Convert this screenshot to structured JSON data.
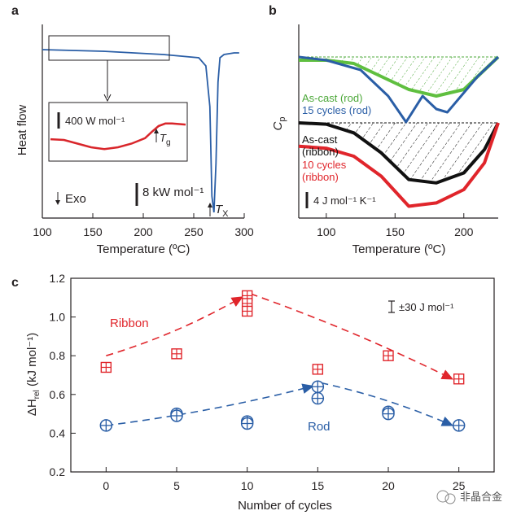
{
  "chart_data": [
    {
      "panel": "a",
      "type": "line",
      "xlabel": "Temperature (ºC)",
      "ylabel": "Heat flow",
      "xlim": [
        100,
        300
      ],
      "xticks": [
        "100",
        "150",
        "200",
        "250",
        "300"
      ],
      "annotations": {
        "exo": "Exo",
        "scale_main": "8 kW mol⁻¹",
        "scale_inset": "400 W mol⁻¹",
        "tx_sym": "T",
        "tx_sub": "X",
        "tg_sym": "T",
        "tg_sub": "g"
      },
      "series": [
        {
          "color": "#2a5ea6",
          "x": [
            100,
            160,
            220,
            255,
            262,
            266,
            268,
            270,
            272,
            274,
            276,
            280,
            290,
            295
          ],
          "y": [
            0.0,
            -0.01,
            -0.03,
            -0.05,
            -0.1,
            -0.35,
            -0.9,
            -1.0,
            -0.7,
            -0.2,
            -0.05,
            -0.03,
            -0.02,
            -0.02
          ]
        }
      ],
      "inset": {
        "color": "#d9262b",
        "x": [
          0,
          0.1,
          0.2,
          0.3,
          0.4,
          0.5,
          0.6,
          0.7,
          0.75,
          0.8,
          0.85,
          0.9,
          1.0
        ],
        "y": [
          0.42,
          0.4,
          0.3,
          0.2,
          0.15,
          0.2,
          0.3,
          0.45,
          0.62,
          0.78,
          0.85,
          0.85,
          0.82
        ]
      }
    },
    {
      "panel": "b",
      "type": "line",
      "xlabel": "Temperature (ºC)",
      "ylabel": "C",
      "ylabel_sub": "p",
      "xlim": [
        80,
        225
      ],
      "xticks": [
        "100",
        "150",
        "200"
      ],
      "scale_label": "4 J mol⁻¹ K⁻¹",
      "legend_top": [
        "As-cast (rod)",
        "15 cycles (rod)"
      ],
      "legend_bottom": [
        "As-cast",
        "(ribbon)",
        "10 cycles",
        "(ribbon)"
      ],
      "series": [
        {
          "name": "As-cast (rod)",
          "color": "#5fbf3f",
          "x": [
            80,
            100,
            120,
            140,
            160,
            180,
            200,
            210,
            225
          ],
          "y": [
            0.05,
            0.05,
            0.1,
            0.3,
            0.5,
            0.6,
            0.5,
            0.3,
            0.0
          ]
        },
        {
          "name": "15 cycles (rod)",
          "color": "#2a5ea6",
          "x": [
            80,
            100,
            125,
            145,
            158,
            170,
            180,
            188,
            198,
            210,
            225
          ],
          "y": [
            0.0,
            0.05,
            0.2,
            0.6,
            1.0,
            0.6,
            0.8,
            0.85,
            0.6,
            0.3,
            0.0
          ]
        },
        {
          "name": "As-cast (ribbon)",
          "color": "#111111",
          "x": [
            80,
            100,
            120,
            140,
            160,
            180,
            200,
            215,
            225
          ],
          "y": [
            0.0,
            0.02,
            0.15,
            0.45,
            0.85,
            0.9,
            0.75,
            0.4,
            0.0
          ]
        },
        {
          "name": "10 cycles (ribbon)",
          "color": "#e0252b",
          "x": [
            80,
            100,
            120,
            140,
            160,
            180,
            200,
            215,
            225
          ],
          "y": [
            0.35,
            0.38,
            0.5,
            0.8,
            1.25,
            1.2,
            1.0,
            0.6,
            0.0
          ]
        }
      ]
    },
    {
      "panel": "c",
      "type": "scatter",
      "xlabel": "Number of cycles",
      "ylabel": "ΔH",
      "ylabel_sub": "rel",
      "ylabel_unit": " (kJ mol⁻¹)",
      "xlim": [
        -2.5,
        27.5
      ],
      "ylim": [
        0.2,
        1.2
      ],
      "xticks": [
        0,
        5,
        10,
        15,
        20,
        25
      ],
      "yticks": [
        "0.2",
        "0.4",
        "0.6",
        "0.8",
        "1.0",
        "1.2"
      ],
      "error_note": "±30 J mol⁻¹",
      "series": [
        {
          "name": "Ribbon",
          "color": "#e0252b",
          "x": [
            0,
            5,
            10,
            10,
            10,
            15,
            20,
            25
          ],
          "y": [
            0.74,
            0.81,
            1.11,
            1.07,
            1.03,
            0.73,
            0.8,
            0.68
          ],
          "trend_x": [
            0,
            10
          ],
          "trend_y": [
            0.8,
            1.12
          ],
          "trend2_x": [
            10,
            25
          ],
          "trend2_y": [
            1.12,
            0.68
          ]
        },
        {
          "name": "Rod",
          "color": "#2a5ea6",
          "x": [
            0,
            5,
            5,
            10,
            10,
            15,
            15,
            20,
            20,
            25
          ],
          "y": [
            0.44,
            0.5,
            0.49,
            0.46,
            0.45,
            0.64,
            0.58,
            0.51,
            0.5,
            0.44
          ],
          "trend_x": [
            0,
            15
          ],
          "trend_y": [
            0.44,
            0.66
          ],
          "trend2_x": [
            15,
            25
          ],
          "trend2_y": [
            0.66,
            0.44
          ]
        }
      ]
    }
  ],
  "watermark": "非晶合金"
}
